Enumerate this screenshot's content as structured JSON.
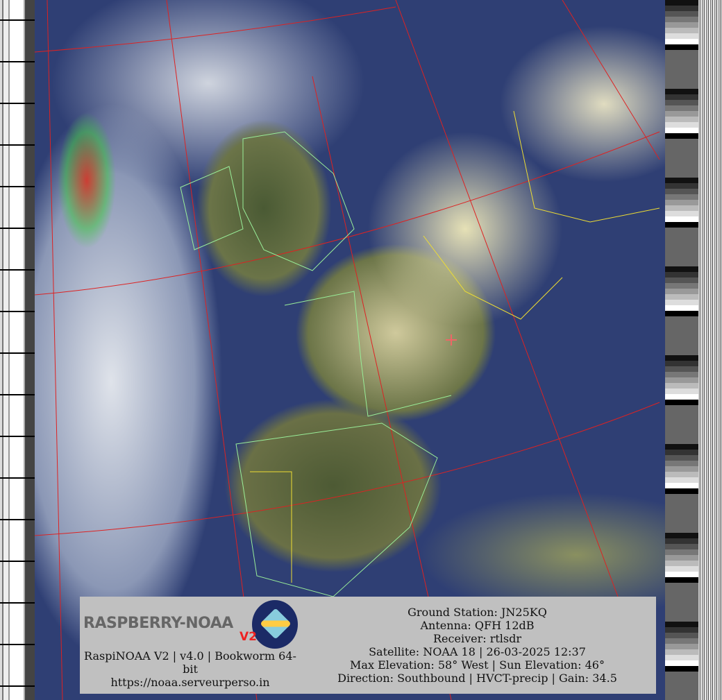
{
  "logo": {
    "text": "RASPBERRY-NOAA",
    "version_badge": "V2"
  },
  "footer_left": {
    "line1": "RaspiNOAA V2 | v4.0 | Bookworm 64-",
    "line2": "bit",
    "url": "https://noaa.serveurperso.in"
  },
  "pass_info": {
    "ground_station": "Ground Station: JN25KQ",
    "antenna": "Antenna: QFH 12dB",
    "receiver": "Receiver: rtlsdr",
    "satellite": "Satellite: NOAA 18 | 26-03-2025 12:37",
    "elevation": "Max Elevation: 58° West | Sun Elevation: 46°",
    "direction": "Direction: Southbound | HVCT-precip | Gain: 34.5"
  },
  "colors": {
    "graticule": "#dd2222",
    "coastline": "#99ee99",
    "borders": "#eedd33",
    "info_bg": "#c0c0c0"
  }
}
